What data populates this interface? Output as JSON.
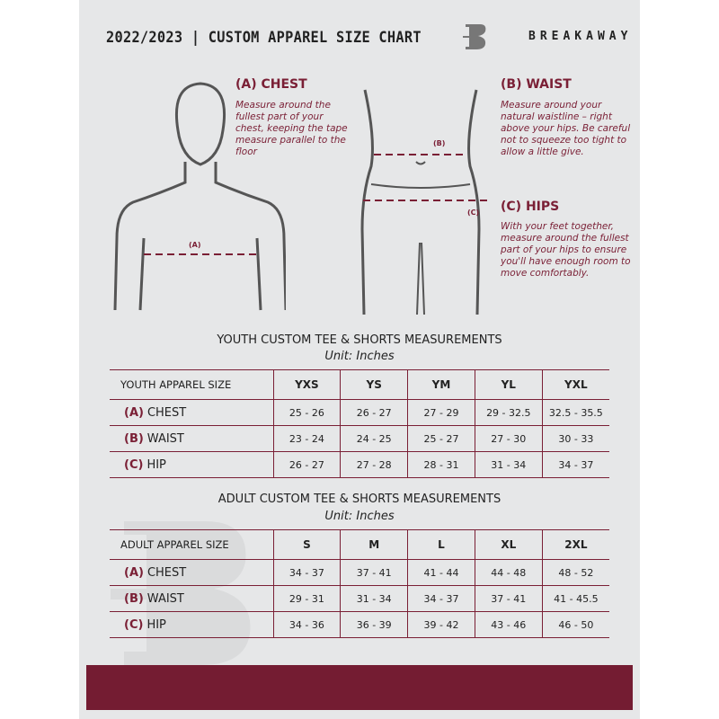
{
  "header": {
    "title": "2022/2023  |  CUSTOM APPAREL SIZE CHART",
    "brand": "BREAKAWAY"
  },
  "guide": {
    "chest": {
      "heading": "(A) CHEST",
      "label": "(A)",
      "text": "Measure around the fullest part of your chest, keeping the tape measure parallel to the floor"
    },
    "waist": {
      "heading": "(B) WAIST",
      "label": "(B)",
      "text": "Measure around your natural waistline – right above your hips. Be careful not to squeeze too tight to allow a little give."
    },
    "hips": {
      "heading": "(C) HIPS",
      "label": "(C)",
      "text": "With your feet together, measure around the fullest part of your hips to ensure you'll have enough room to move comfortably."
    }
  },
  "youth": {
    "title": "YOUTH CUSTOM TEE & SHORTS MEASUREMENTS",
    "unit": "Unit: Inches",
    "size_label": "YOUTH APPAREL SIZE",
    "sizes": [
      "YXS",
      "YS",
      "YM",
      "YL",
      "YXL"
    ],
    "rows": [
      {
        "code": "(A)",
        "name": "CHEST",
        "values": [
          "25 - 26",
          "26 - 27",
          "27 - 29",
          "29 - 32.5",
          "32.5 - 35.5"
        ]
      },
      {
        "code": "(B)",
        "name": "WAIST",
        "values": [
          "23 - 24",
          "24 - 25",
          "25 - 27",
          "27 - 30",
          "30 - 33"
        ]
      },
      {
        "code": "(C)",
        "name": "HIP",
        "values": [
          "26 - 27",
          "27 - 28",
          "28 - 31",
          "31 - 34",
          "34 - 37"
        ]
      }
    ]
  },
  "adult": {
    "title": "ADULT CUSTOM TEE & SHORTS MEASUREMENTS",
    "unit": "Unit: Inches",
    "size_label": "ADULT APPAREL SIZE",
    "sizes": [
      "S",
      "M",
      "L",
      "XL",
      "2XL"
    ],
    "rows": [
      {
        "code": "(A)",
        "name": "CHEST",
        "values": [
          "34 - 37",
          "37 - 41",
          "41 - 44",
          "44 - 48",
          "48 - 52"
        ]
      },
      {
        "code": "(B)",
        "name": "WAIST",
        "values": [
          "29 - 31",
          "31 - 34",
          "34 - 37",
          "37 - 41",
          "41 - 45.5"
        ]
      },
      {
        "code": "(C)",
        "name": "HIP",
        "values": [
          "34 - 36",
          "36 - 39",
          "39 - 42",
          "43 - 46",
          "46 - 50"
        ]
      }
    ]
  },
  "colors": {
    "accent": "#741c32",
    "panel": "#e6e7e8"
  }
}
